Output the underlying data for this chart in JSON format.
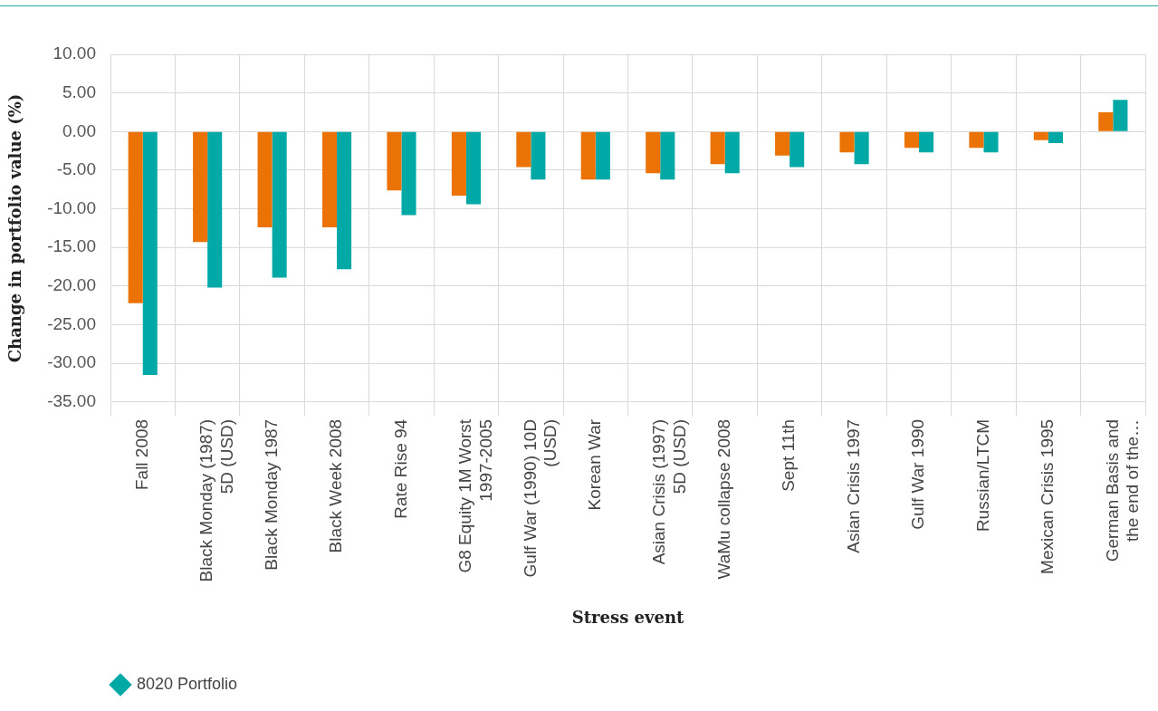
{
  "chart_data": {
    "type": "bar",
    "xlabel": "Stress event",
    "ylabel": "Change in portfolio value (%)",
    "categories": [
      "Fall 2008",
      "Black Monday (1987) 5D (USD)",
      "Black Monday 1987",
      "Black Week 2008",
      "Rate Rise 94",
      "G8 Equity 1M Worst 1997-2005",
      "Gulf War (1990) 10D (USD)",
      "Korean War",
      "Asian Crisis (1997) 5D (USD)",
      "WaMu collapse 2008",
      "Sept 11th",
      "Asian Crisis 1997",
      "Gulf War 1990",
      "Russian/LTCM",
      "Mexican Crisis 1995",
      "German Basis and the end of the…"
    ],
    "series": [
      {
        "color": "#eb7305",
        "values": [
          -22.2,
          -14.3,
          -12.4,
          -12.4,
          -7.6,
          -8.3,
          -4.6,
          -6.2,
          -5.4,
          -4.2,
          -3.1,
          -2.7,
          -2.1,
          -2.1,
          -1.1,
          2.5
        ]
      },
      {
        "name": "8020 Portfolio",
        "color": "#00a9a6",
        "values": [
          -31.5,
          -20.2,
          -18.9,
          -17.8,
          -10.8,
          -9.4,
          -6.2,
          -6.2,
          -6.2,
          -5.4,
          -4.6,
          -4.2,
          -2.7,
          -2.7,
          -1.5,
          4.1
        ]
      }
    ],
    "ylim": [
      -35,
      10
    ],
    "yticks": [
      {
        "value": -35,
        "label": "-35.00"
      },
      {
        "value": -30,
        "label": "-30.00"
      },
      {
        "value": -25,
        "label": "-25.00"
      },
      {
        "value": -20,
        "label": "-20.00"
      },
      {
        "value": -15,
        "label": "-15.00"
      },
      {
        "value": -10,
        "label": "-10.00"
      },
      {
        "value": -5,
        "label": "-5.00"
      },
      {
        "value": 0,
        "label": "0.00"
      },
      {
        "value": 5,
        "label": "5.00"
      },
      {
        "value": 10,
        "label": "10.00"
      }
    ],
    "grid": true,
    "legend": "bottom left"
  }
}
